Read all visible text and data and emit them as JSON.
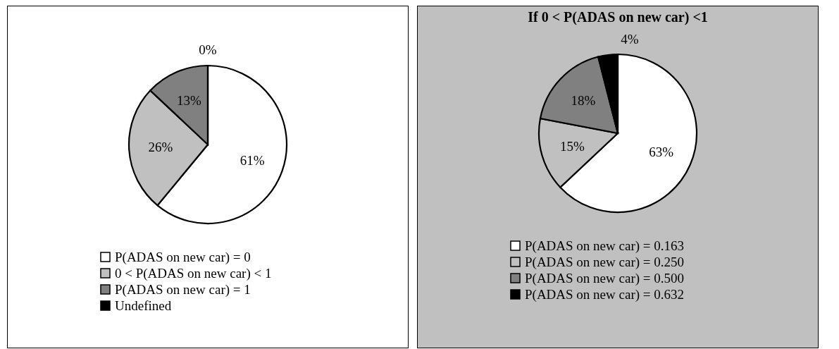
{
  "chart_data": [
    {
      "type": "pie",
      "categories": [
        "P(ADAS on new car) = 0",
        "0 < P(ADAS on new car) < 1",
        "P(ADAS on new car) = 1",
        "Undefined"
      ],
      "values": [
        61,
        26,
        13,
        0
      ],
      "value_labels": [
        "61%",
        "26%",
        "13%",
        "0%"
      ],
      "colors": [
        "#ffffff",
        "#c0c0c0",
        "#808080",
        "#000000"
      ],
      "legend": "bottom"
    },
    {
      "type": "pie",
      "title": "If 0 < P(ADAS on new car) <1",
      "categories": [
        "P(ADAS on new car) = 0.163",
        "P(ADAS on new car) = 0.250",
        "P(ADAS on new car) = 0.500",
        "P(ADAS on new car) = 0.632"
      ],
      "values": [
        63,
        15,
        18,
        4
      ],
      "value_labels": [
        "63%",
        "15%",
        "18%",
        "4%"
      ],
      "colors": [
        "#ffffff",
        "#c0c0c0",
        "#808080",
        "#000000"
      ],
      "legend": "bottom"
    }
  ]
}
